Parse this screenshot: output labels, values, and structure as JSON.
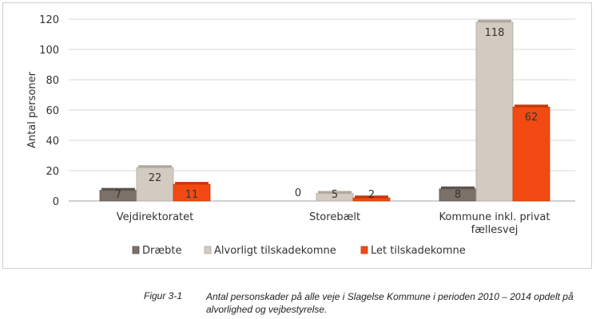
{
  "chart_data": {
    "type": "bar",
    "ylabel": "Antal personer",
    "ylim": [
      0,
      120
    ],
    "yticks": [
      0,
      20,
      40,
      60,
      80,
      100,
      120
    ],
    "categories": [
      [
        "Vejdirektoratet"
      ],
      [
        "Storebælt"
      ],
      [
        "Kommune inkl. privat",
        "fællesvej"
      ]
    ],
    "series": [
      {
        "name": "Dræbte",
        "color": "#7b7169",
        "values": [
          7,
          0,
          8
        ]
      },
      {
        "name": "Alvorligt tilskadekomne",
        "color": "#d3cbc1",
        "values": [
          22,
          5,
          118
        ]
      },
      {
        "name": "Let tilskadekomne",
        "color": "#f24a12",
        "values": [
          11,
          2,
          62
        ]
      }
    ],
    "legend_position": "bottom",
    "grid": true
  },
  "caption": {
    "number": "Figur 3-1",
    "text": "Antal personskader på alle veje i Slagelse Kommune i perioden 2010 – 2014 opdelt på alvorlighed og vejbestyrelse."
  }
}
